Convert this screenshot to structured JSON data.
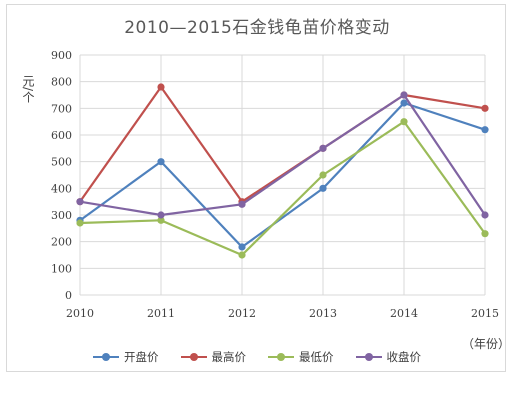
{
  "chart_data": {
    "type": "line",
    "title": "2010—2015石金钱龟苗价格变动",
    "ylabel": "元/个",
    "xunit": "（年份）",
    "categories": [
      "2010",
      "2011",
      "2012",
      "2013",
      "2014",
      "2015"
    ],
    "ylim": [
      0,
      900
    ],
    "yticks": [
      0,
      100,
      200,
      300,
      400,
      500,
      600,
      700,
      800,
      900
    ],
    "grid": true,
    "legend_position": "bottom",
    "series": [
      {
        "name": "开盘价",
        "color": "#4f81bd",
        "values": [
          280,
          500,
          180,
          400,
          720,
          620
        ]
      },
      {
        "name": "最高价",
        "color": "#c0504d",
        "values": [
          350,
          780,
          350,
          550,
          750,
          700
        ]
      },
      {
        "name": "最低价",
        "color": "#9bbb59",
        "values": [
          270,
          280,
          150,
          450,
          650,
          230
        ]
      },
      {
        "name": "收盘价",
        "color": "#8064a2",
        "values": [
          350,
          300,
          340,
          550,
          750,
          300
        ]
      }
    ]
  }
}
